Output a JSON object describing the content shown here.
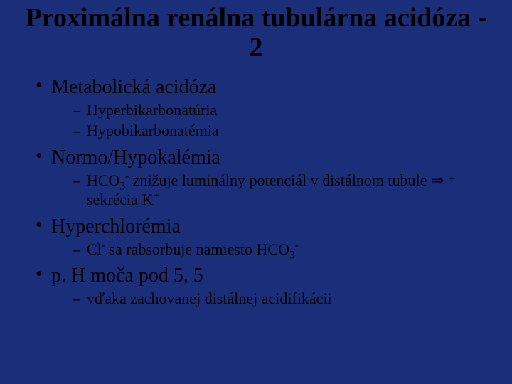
{
  "slide": {
    "background_color": "#1b2e7a",
    "text_color": "#000000",
    "title_fontsize": 38,
    "bullet_l1_fontsize": 28,
    "bullet_l2_fontsize": 22,
    "title": "Proximálna renálna tubulárna acidóza - 2",
    "bullets": [
      {
        "text": "Metabolická acidóza",
        "children": [
          {
            "text": "Hyperbikarbonatúria"
          },
          {
            "text": "Hypobikarbonatémia"
          }
        ]
      },
      {
        "text": "Normo/Hypokalémia",
        "children": [
          {
            "html": "HCO<span class=\"sub\">3</span><span class=\"sup\">-</span> znižuje luminálny potenciál v distálnom tubule <span class=\"sym\">⇒ ↑</span> sekrécia K<span class=\"sup\">+</span>"
          }
        ]
      },
      {
        "text": "Hyperchlorémia",
        "children": [
          {
            "html": "Cl<span class=\"sup\">-</span> sa rabsorbuje namiesto HCO<span class=\"sub\">3</span><span class=\"sup\">-</span>"
          }
        ]
      },
      {
        "text": "p. H moča pod 5, 5",
        "children": [
          {
            "text": "vďaka zachovanej distálnej acidifikácii"
          }
        ]
      }
    ]
  }
}
